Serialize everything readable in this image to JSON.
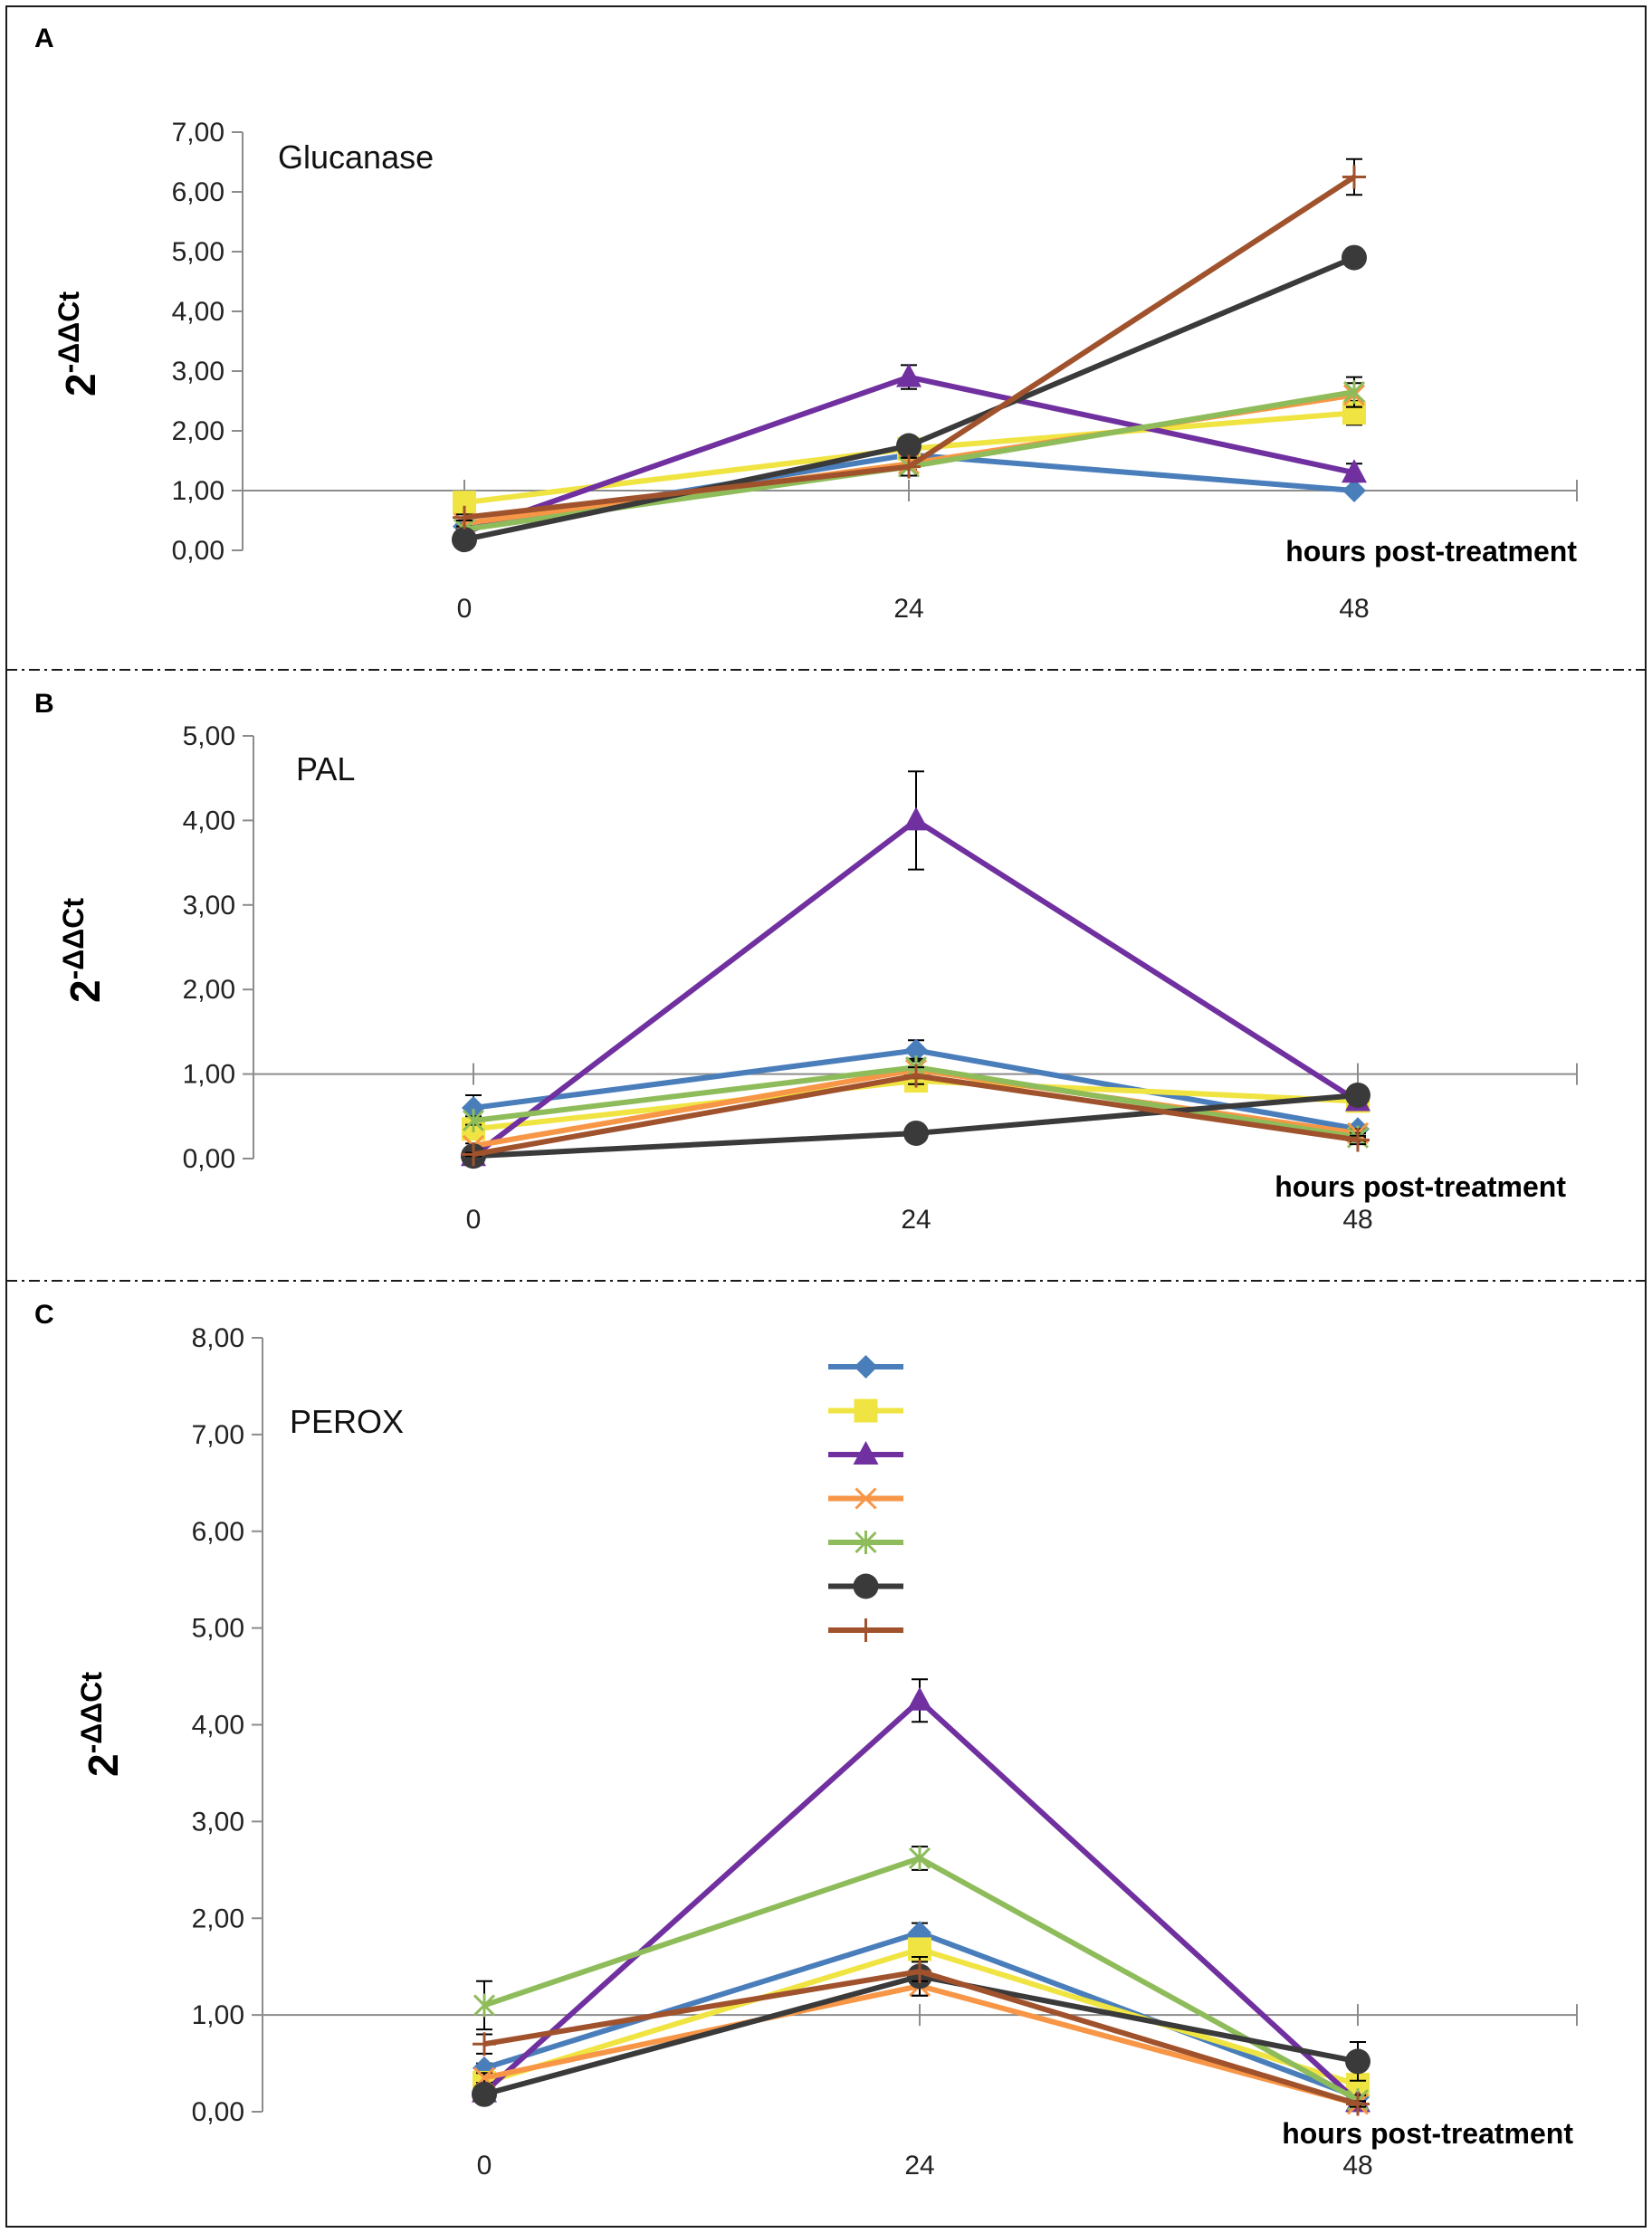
{
  "chart_data": [
    {
      "panel": "A",
      "type": "line",
      "title": "Glucanase",
      "ylabel_base": "2",
      "ylabel_sup": "-ΔΔCt",
      "xlabel": "hours post-treatment",
      "x": [
        "0",
        "24",
        "48"
      ],
      "ylim": [
        0,
        7
      ],
      "yticks": [
        "0,00",
        "1,00",
        "2,00",
        "3,00",
        "4,00",
        "5,00",
        "6,00",
        "7,00"
      ],
      "series": [
        {
          "color": "#4a7ebb",
          "marker": "diamond",
          "values": [
            0.4,
            1.6,
            1.0
          ],
          "errors": [
            0.05,
            0.05,
            0.03
          ]
        },
        {
          "color": "#f0e442",
          "marker": "square",
          "values": [
            0.8,
            1.7,
            2.3
          ],
          "errors": [
            0.05,
            0.1,
            0.2
          ]
        },
        {
          "color": "#7030a0",
          "marker": "triangle",
          "values": [
            0.3,
            2.9,
            1.3
          ],
          "errors": [
            0.05,
            0.2,
            0.15
          ]
        },
        {
          "color": "#f79646",
          "marker": "x",
          "values": [
            0.45,
            1.45,
            2.6
          ],
          "errors": [
            0.05,
            0.1,
            0.2
          ]
        },
        {
          "color": "#8fbc5a",
          "marker": "star",
          "values": [
            0.35,
            1.4,
            2.65
          ],
          "errors": [
            0.05,
            0.15,
            0.25
          ]
        },
        {
          "color": "#3a3a3a",
          "marker": "circle",
          "values": [
            0.18,
            1.75,
            4.9
          ],
          "errors": [
            0.03,
            0.05,
            0.05
          ]
        },
        {
          "color": "#a0522d",
          "marker": "plus",
          "values": [
            0.55,
            1.4,
            6.25
          ],
          "errors": [
            0.05,
            0.15,
            0.3
          ]
        }
      ]
    },
    {
      "panel": "B",
      "type": "line",
      "title": "PAL",
      "ylabel_base": "2",
      "ylabel_sup": "-ΔΔCt",
      "xlabel": "hours post-treatment",
      "x": [
        "0",
        "24",
        "48"
      ],
      "ylim": [
        0,
        5
      ],
      "yticks": [
        "0,00",
        "1,00",
        "2,00",
        "3,00",
        "4,00",
        "5,00"
      ],
      "series": [
        {
          "color": "#4a7ebb",
          "marker": "diamond",
          "values": [
            0.6,
            1.28,
            0.35
          ],
          "errors": [
            0.15,
            0.12,
            0.05
          ]
        },
        {
          "color": "#f0e442",
          "marker": "square",
          "values": [
            0.35,
            0.92,
            0.68
          ],
          "errors": [
            0.05,
            0.08,
            0.05
          ]
        },
        {
          "color": "#7030a0",
          "marker": "triangle",
          "values": [
            0.03,
            4.0,
            0.68
          ],
          "errors": [
            0.02,
            0.58,
            0.05
          ]
        },
        {
          "color": "#f79646",
          "marker": "x",
          "values": [
            0.15,
            1.05,
            0.3
          ],
          "errors": [
            0.03,
            0.1,
            0.05
          ]
        },
        {
          "color": "#8fbc5a",
          "marker": "star",
          "values": [
            0.45,
            1.08,
            0.25
          ],
          "errors": [
            0.05,
            0.1,
            0.05
          ]
        },
        {
          "color": "#3a3a3a",
          "marker": "circle",
          "values": [
            0.03,
            0.3,
            0.75
          ],
          "errors": [
            0.01,
            0.03,
            0.05
          ]
        },
        {
          "color": "#a0522d",
          "marker": "plus",
          "values": [
            0.05,
            0.98,
            0.22
          ],
          "errors": [
            0.02,
            0.1,
            0.05
          ]
        }
      ]
    },
    {
      "panel": "C",
      "type": "line",
      "title": "PEROX",
      "ylabel_base": "2",
      "ylabel_sup": "-ΔΔCt",
      "xlabel": "hours post-treatment",
      "x": [
        "0",
        "24",
        "48"
      ],
      "ylim": [
        0,
        8
      ],
      "yticks": [
        "0,00",
        "1,00",
        "2,00",
        "3,00",
        "4,00",
        "5,00",
        "6,00",
        "7,00",
        "8,00"
      ],
      "series": [
        {
          "color": "#4a7ebb",
          "marker": "diamond",
          "values": [
            0.45,
            1.85,
            0.15
          ],
          "errors": [
            0.05,
            0.1,
            0.05
          ]
        },
        {
          "color": "#f0e442",
          "marker": "square",
          "values": [
            0.3,
            1.68,
            0.28
          ],
          "errors": [
            0.05,
            0.1,
            0.05
          ]
        },
        {
          "color": "#7030a0",
          "marker": "triangle",
          "values": [
            0.2,
            4.25,
            0.1
          ],
          "errors": [
            0.05,
            0.22,
            0.05
          ]
        },
        {
          "color": "#f79646",
          "marker": "x",
          "values": [
            0.35,
            1.3,
            0.08
          ],
          "errors": [
            0.05,
            0.1,
            0.03
          ]
        },
        {
          "color": "#8fbc5a",
          "marker": "star",
          "values": [
            1.1,
            2.62,
            0.12
          ],
          "errors": [
            0.25,
            0.12,
            0.05
          ]
        },
        {
          "color": "#3a3a3a",
          "marker": "circle",
          "values": [
            0.18,
            1.4,
            0.52
          ],
          "errors": [
            0.03,
            0.2,
            0.2
          ]
        },
        {
          "color": "#a0522d",
          "marker": "plus",
          "values": [
            0.7,
            1.45,
            0.08
          ],
          "errors": [
            0.1,
            0.1,
            0.03
          ]
        }
      ]
    }
  ]
}
